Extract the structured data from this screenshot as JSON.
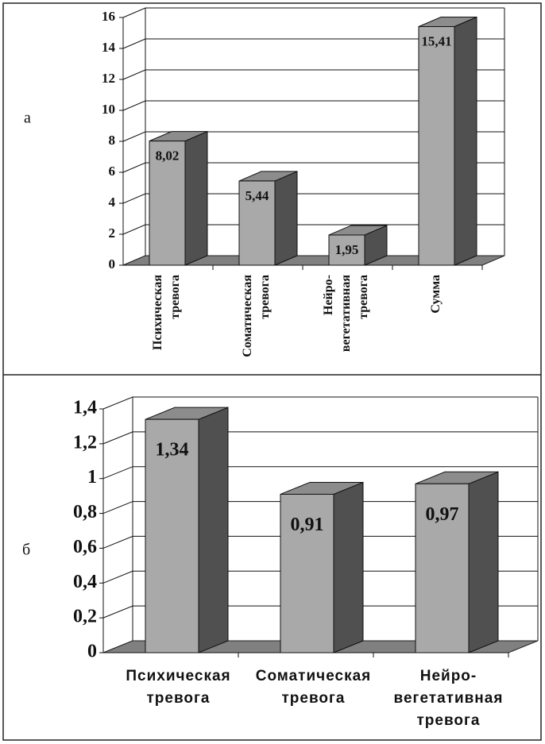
{
  "chart_data": [
    {
      "type": "bar3d",
      "panel_label": "а",
      "categories": [
        [
          "Психическая",
          "тревога"
        ],
        [
          "Соматическая",
          "тревога"
        ],
        [
          "Нейро-",
          "вегетативная",
          "тревога"
        ],
        [
          "Сумма"
        ]
      ],
      "values": [
        8.02,
        5.44,
        1.95,
        15.41
      ],
      "value_labels": [
        "8,02",
        "5,44",
        "1,95",
        "15,41"
      ],
      "ylim": [
        0,
        16
      ],
      "yticks": [
        0,
        2,
        4,
        6,
        8,
        10,
        12,
        14,
        16
      ],
      "grid": true,
      "color": "#a9a9a9"
    },
    {
      "type": "bar3d",
      "panel_label": "б",
      "categories": [
        [
          "Психическая",
          "тревога"
        ],
        [
          "Соматическая",
          "тревога"
        ],
        [
          "Нейро-",
          "вегетативная",
          "тревога"
        ]
      ],
      "values": [
        1.34,
        0.91,
        0.97
      ],
      "value_labels": [
        "1,34",
        "0,91",
        "0,97"
      ],
      "ylim": [
        0,
        1.4
      ],
      "yticks": [
        0,
        {
          "value": 0.2,
          "label": "0,2"
        },
        {
          "value": 0.4,
          "label": "0,4"
        },
        {
          "value": 0.6,
          "label": "0,6"
        },
        {
          "value": 0.8,
          "label": "0,8"
        },
        1,
        {
          "value": 1.2,
          "label": "1,2"
        },
        {
          "value": 1.4,
          "label": "1,4"
        }
      ],
      "grid": true,
      "color": "#a9a9a9"
    }
  ]
}
